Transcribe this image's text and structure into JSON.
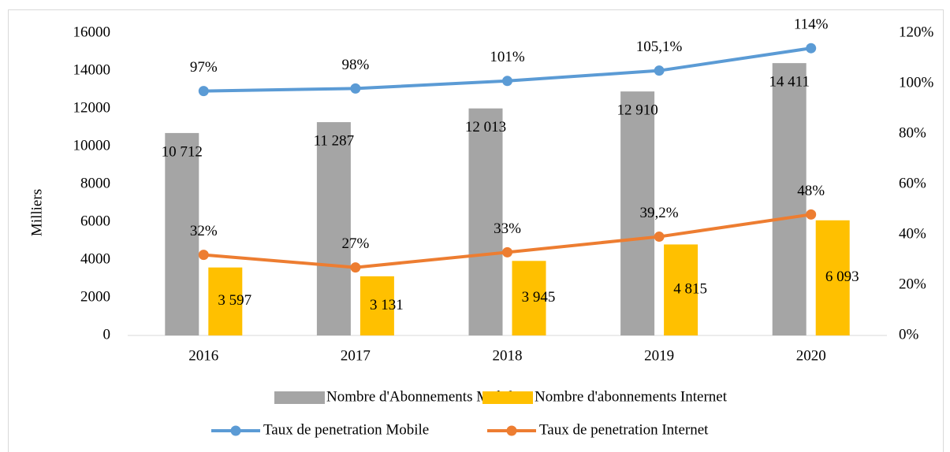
{
  "chart_data": {
    "type": "bar",
    "categories": [
      "2016",
      "2017",
      "2018",
      "2019",
      "2020"
    ],
    "y_label": "Milliers",
    "ylim": [
      0,
      16000
    ],
    "yticks": [
      0,
      2000,
      4000,
      6000,
      8000,
      10000,
      12000,
      14000,
      16000
    ],
    "y2lim": [
      0,
      120
    ],
    "y2ticks": [
      {
        "value": 0,
        "label": "0%"
      },
      {
        "value": 20,
        "label": "20%"
      },
      {
        "value": 40,
        "label": "40%"
      },
      {
        "value": 60,
        "label": "60%"
      },
      {
        "value": 80,
        "label": "80%"
      },
      {
        "value": 100,
        "label": "100%"
      },
      {
        "value": 120,
        "label": "120%"
      }
    ],
    "legend": "bottom",
    "series": [
      {
        "name": "Nombre d'Abonnements Mobile",
        "type": "bar",
        "color": "#a5a5a5",
        "values": [
          10712,
          11287,
          12013,
          12910,
          14411
        ],
        "value_labels": [
          "10 712",
          "11 287",
          "12 013",
          "12 910",
          "14 411"
        ]
      },
      {
        "name": "Nombre d'abonnements Internet",
        "type": "bar",
        "color": "#ffc000",
        "values": [
          3597,
          3131,
          3945,
          4815,
          6093
        ],
        "value_labels": [
          "3 597",
          "3 131",
          "3 945",
          "4 815",
          "6 093"
        ]
      },
      {
        "name": "Taux de penetration Mobile",
        "type": "line",
        "axis": "y2",
        "color": "#5b9bd5",
        "values": [
          97,
          98,
          101,
          105.1,
          114
        ],
        "value_labels": [
          "97%",
          "98%",
          "101%",
          "105,1%",
          "114%"
        ]
      },
      {
        "name": "Taux de penetration Internet",
        "type": "line",
        "axis": "y2",
        "color": "#ed7d31",
        "values": [
          32,
          27,
          33,
          39.2,
          48
        ],
        "value_labels": [
          "32%",
          "27%",
          "33%",
          "39,2%",
          "48%"
        ]
      }
    ]
  }
}
